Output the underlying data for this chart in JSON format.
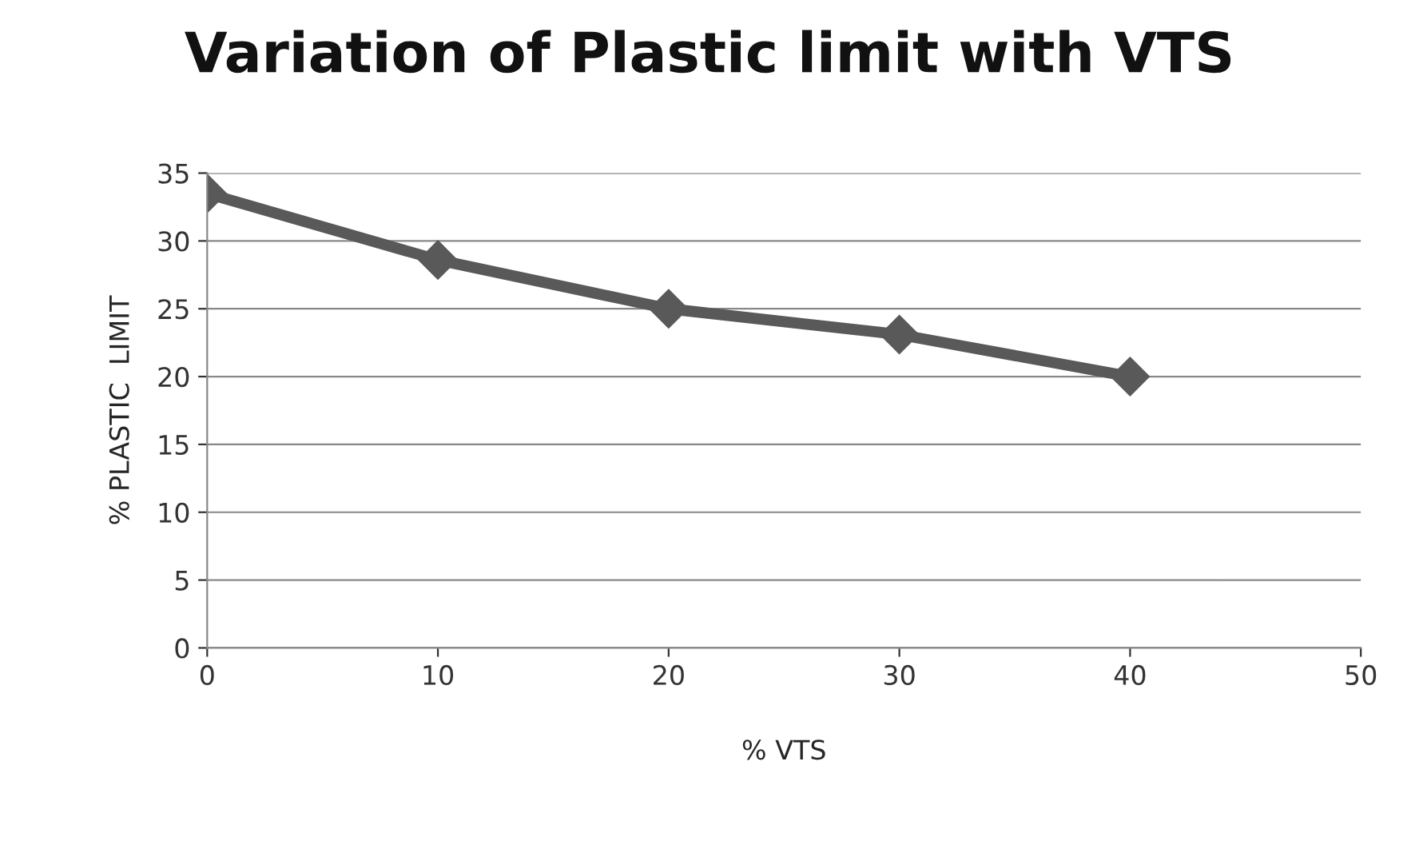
{
  "chart_data": {
    "type": "line",
    "title": "Variation of Plastic limit with VTS",
    "xlabel": "% VTS",
    "ylabel": "% PLASTIC  LIMIT",
    "x": [
      0,
      10,
      20,
      30,
      40
    ],
    "series": [
      {
        "color": "#595959",
        "values": [
          33.5,
          28.6,
          25.0,
          23.1,
          20.0
        ]
      }
    ],
    "xlim": [
      0,
      50
    ],
    "xticks": [
      0,
      10,
      20,
      30,
      40,
      50
    ],
    "ylim": [
      0,
      35
    ],
    "yticks": [
      0,
      5,
      10,
      15,
      20,
      25,
      30,
      35
    ],
    "grid": "y",
    "marker": "diamond",
    "line_style": "solid",
    "legend": false
  }
}
